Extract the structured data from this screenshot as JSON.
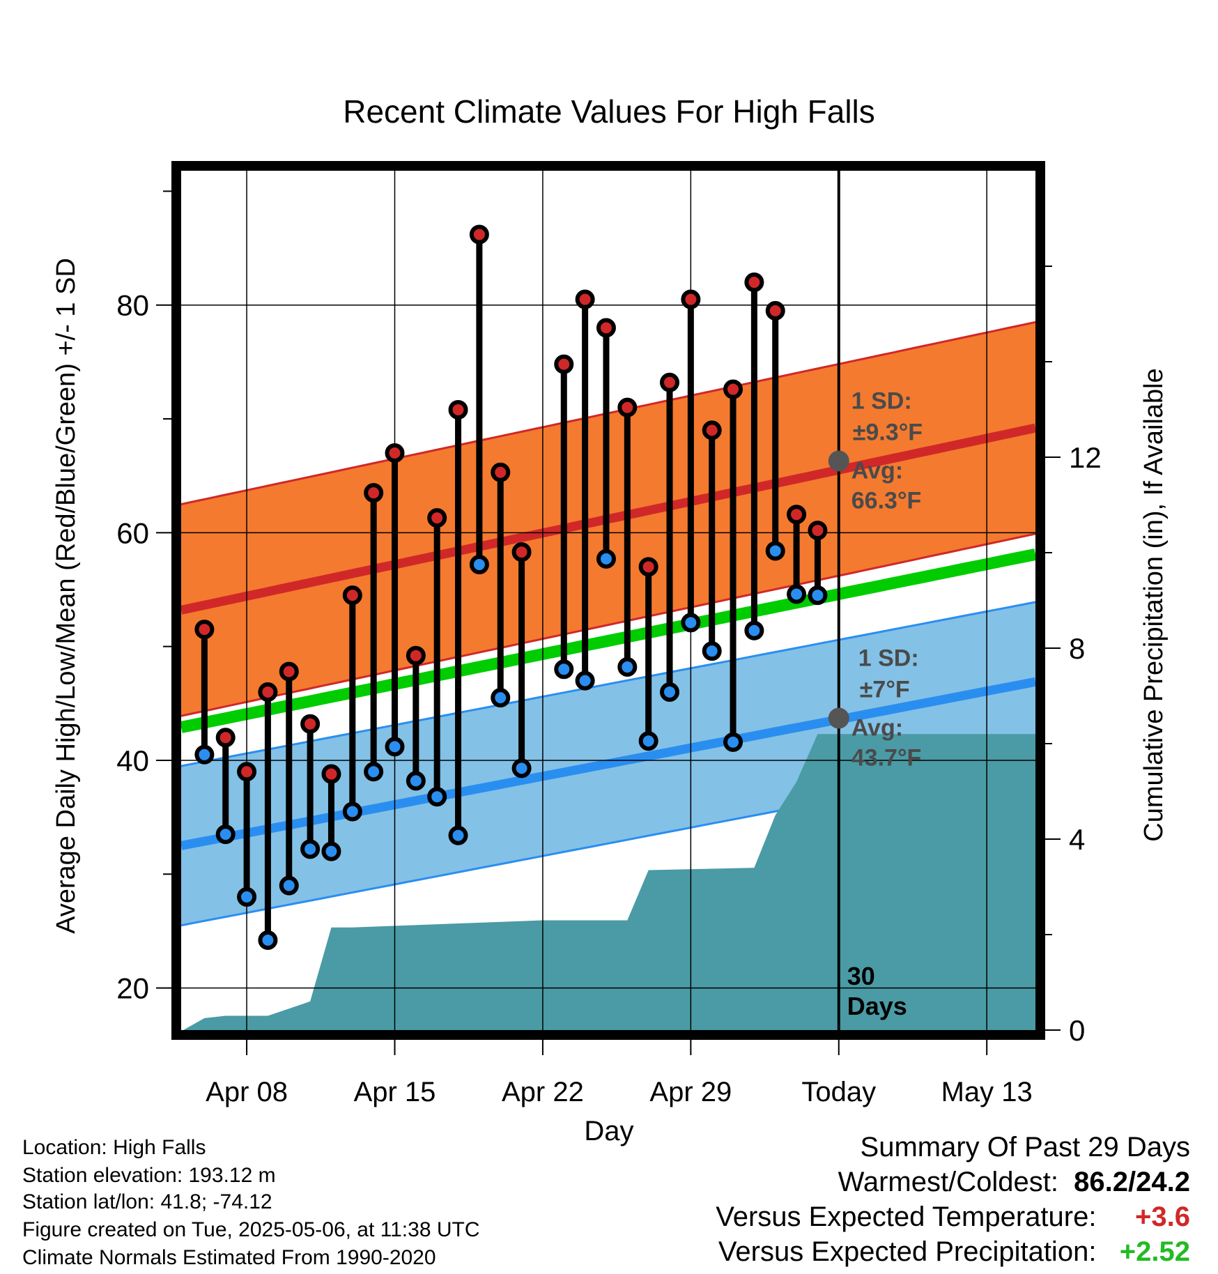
{
  "chart_data": {
    "type": "line",
    "title": "Recent Climate Values For High Falls",
    "xlabel": "Day",
    "ylabel_left": "Average Daily High/Low/Mean (Red/Blue/Green) +/- 1 SD",
    "ylabel_right": "Cumulative Precipitation (in), If Available",
    "x_tick_labels": [
      "Apr 08",
      "Apr 15",
      "Apr 22",
      "Apr 29",
      "Today",
      "May 13"
    ],
    "x_tick_days": [
      -28,
      -21,
      -14,
      -7,
      0,
      7
    ],
    "xlim": [
      -31.1,
      9.3
    ],
    "ylim_left": [
      16.3,
      91.8
    ],
    "yticks_left": [
      "20",
      "40",
      "60",
      "80"
    ],
    "ylim_right": [
      0,
      18
    ],
    "yticks_right": [
      "0",
      "4",
      "8",
      "12"
    ],
    "days": [
      -30,
      -29,
      -28,
      -27,
      -26,
      -25,
      -24,
      -23,
      -22,
      -21,
      -20,
      -19,
      -18,
      -17,
      -16,
      -15,
      -14,
      -13,
      -12,
      -11,
      -10,
      -9,
      -8,
      -7,
      -6,
      -5,
      -4,
      -3,
      -2,
      -1
    ],
    "observed_high": [
      51.5,
      42.0,
      39.0,
      46.0,
      47.8,
      43.2,
      38.8,
      54.5,
      63.5,
      67.0,
      49.2,
      61.3,
      70.8,
      86.2,
      65.3,
      58.3,
      null,
      74.8,
      80.5,
      78.0,
      71.0,
      57.0,
      73.2,
      80.5,
      69.0,
      72.6,
      82.0,
      79.5,
      61.6,
      60.2
    ],
    "observed_low": [
      40.5,
      33.5,
      28.0,
      24.2,
      29.0,
      32.2,
      32.0,
      35.5,
      39.0,
      41.2,
      38.2,
      36.8,
      33.4,
      57.2,
      45.5,
      39.3,
      null,
      48.0,
      47.0,
      57.7,
      48.2,
      41.7,
      46.0,
      52.1,
      49.6,
      41.6,
      51.4,
      58.4,
      54.6,
      54.5
    ],
    "normal_high": {
      "start": 53.2,
      "today": 66.3,
      "end": 69.2,
      "sd": 9.3
    },
    "normal_low": {
      "start": 32.5,
      "today": 43.7,
      "end": 46.9,
      "sd": 7
    },
    "normal_mean": {
      "start": 42.9,
      "end": 58.1
    },
    "precip_days": [
      -31,
      -30,
      -29,
      -28,
      -27,
      -26,
      -25,
      -24,
      -23,
      -14,
      -13,
      -10,
      -9,
      -4,
      -3,
      -2,
      -1,
      0,
      9.3
    ],
    "precip_cumulative": [
      0.0,
      0.25,
      0.3,
      0.3,
      0.3,
      0.45,
      0.6,
      2.15,
      2.15,
      2.3,
      2.3,
      2.3,
      3.35,
      3.4,
      4.5,
      5.2,
      6.2,
      6.2,
      6.2
    ],
    "annotations": {
      "high_sd_label": "1 SD:",
      "high_sd_value": "±9.3°F",
      "high_avg_label": "Avg:",
      "high_avg_value": "66.3°F",
      "low_sd_label": "1 SD:",
      "low_sd_value": "±7°F",
      "low_avg_label": "Avg:",
      "low_avg_value": "43.7°F",
      "days_count": "30",
      "days_word": "Days"
    },
    "colors": {
      "high_band": "#f47a2f",
      "high_line": "#d02828",
      "low_band": "#84c1e6",
      "low_line": "#2a8ef0",
      "mean_line": "#00cc00",
      "precip": "#4a9ba5",
      "high_point": "#d02828",
      "low_point": "#2a8ef0"
    }
  },
  "info": {
    "location": "Location: High Falls",
    "elevation": "Station elevation: 193.12 m",
    "latlon": "Station lat/lon: 41.8; -74.12",
    "created": "Figure created on Tue, 2025-05-06, at 11:38 UTC",
    "normals": "Climate Normals Estimated From 1990-2020"
  },
  "summary": {
    "title": "Summary Of Past 29 Days",
    "warmest_label": "Warmest/Coldest:",
    "warmest_value": "86.2/24.2",
    "temp_label": "Versus Expected Temperature:",
    "temp_value": "+3.6",
    "temp_color": "#d02828",
    "precip_label": "Versus Expected Precipitation:",
    "precip_value": "+2.52",
    "precip_color": "#22bb22"
  }
}
